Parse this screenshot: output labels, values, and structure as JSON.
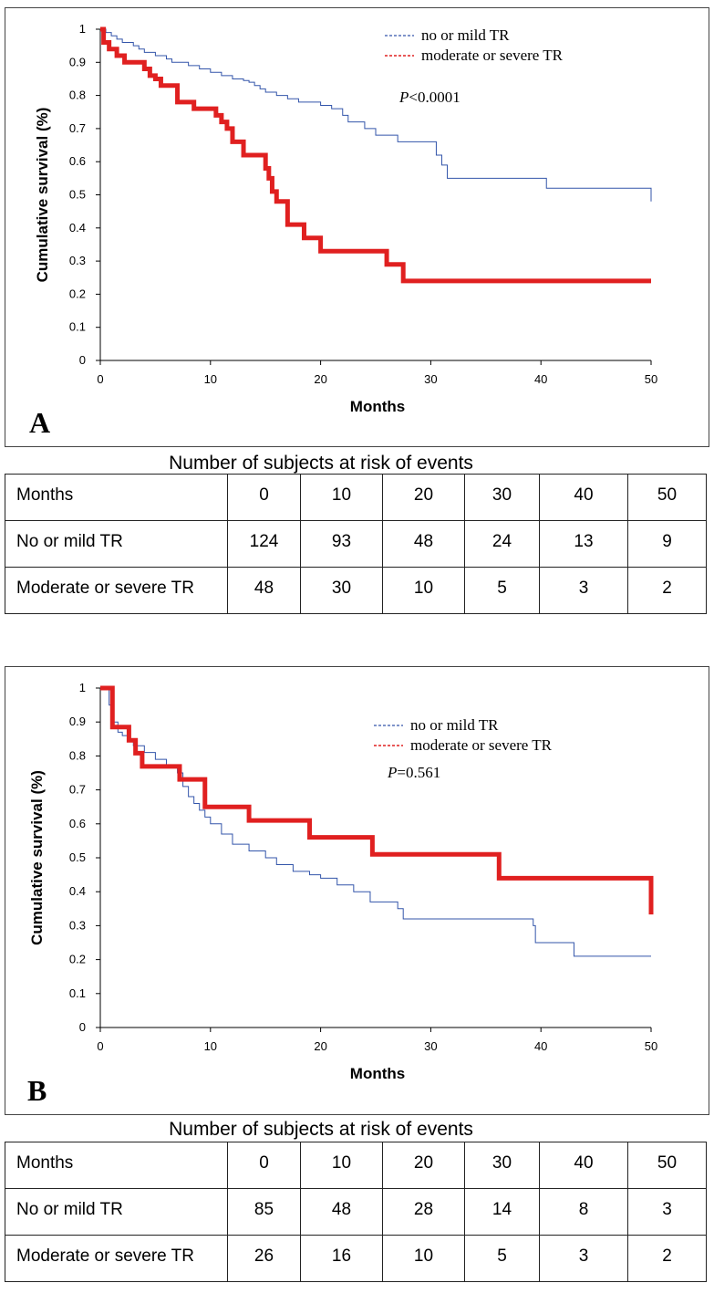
{
  "chart_data": [
    {
      "type": "line",
      "panel_label": "A",
      "xlabel": "Months",
      "ylabel": "Cumulative survival (%)",
      "xlim": [
        0,
        50
      ],
      "ylim": [
        0,
        1
      ],
      "xticks": [
        "0",
        "10",
        "20",
        "30",
        "40",
        "50"
      ],
      "yticks": [
        "0",
        "0.1",
        "0.2",
        "0.3",
        "0.4",
        "0.5",
        "0.6",
        "0.7",
        "0.8",
        "0.9",
        "1"
      ],
      "step": true,
      "legend_position": "top-right",
      "pvalue_label": "P",
      "pvalue_text": "<0.0001",
      "series": [
        {
          "name": "no or mild TR",
          "color": "#3355aa",
          "thick": false,
          "x": [
            0,
            0.5,
            1,
            1.5,
            2,
            3,
            3.5,
            4,
            5,
            6,
            6.5,
            7,
            8,
            9,
            10,
            11,
            12,
            13,
            13.5,
            14,
            14.5,
            15,
            16,
            17,
            18,
            19,
            20,
            21,
            22,
            22.5,
            24,
            25,
            27,
            30.5,
            31,
            31.5,
            40.5,
            50
          ],
          "y": [
            1.0,
            0.99,
            0.98,
            0.97,
            0.96,
            0.95,
            0.94,
            0.93,
            0.92,
            0.91,
            0.9,
            0.9,
            0.89,
            0.88,
            0.87,
            0.86,
            0.85,
            0.845,
            0.84,
            0.83,
            0.82,
            0.81,
            0.8,
            0.79,
            0.78,
            0.78,
            0.77,
            0.76,
            0.74,
            0.72,
            0.7,
            0.68,
            0.66,
            0.62,
            0.59,
            0.55,
            0.52,
            0.48
          ]
        },
        {
          "name": "moderate or severe TR",
          "color": "#e02020",
          "thick": true,
          "x": [
            0,
            0.3,
            0.8,
            1.5,
            2.2,
            4,
            4.5,
            5,
            5.5,
            7,
            8.5,
            10.5,
            11,
            11.5,
            12,
            13,
            15,
            15.3,
            15.6,
            16,
            17,
            18.5,
            20,
            26,
            27.5,
            50
          ],
          "y": [
            1.0,
            0.96,
            0.94,
            0.92,
            0.9,
            0.88,
            0.86,
            0.85,
            0.83,
            0.78,
            0.76,
            0.74,
            0.72,
            0.7,
            0.66,
            0.62,
            0.58,
            0.55,
            0.51,
            0.48,
            0.41,
            0.37,
            0.33,
            0.29,
            0.24,
            0.24
          ]
        }
      ]
    },
    {
      "type": "line",
      "panel_label": "B",
      "xlabel": "Months",
      "ylabel": "Cumulative survival (%)",
      "xlim": [
        0,
        50
      ],
      "ylim": [
        0,
        1
      ],
      "xticks": [
        "0",
        "10",
        "20",
        "30",
        "40",
        "50"
      ],
      "yticks": [
        "0",
        "0.1",
        "0.2",
        "0.3",
        "0.4",
        "0.5",
        "0.6",
        "0.7",
        "0.8",
        "0.9",
        "1"
      ],
      "step": true,
      "legend_position": "top-right",
      "pvalue_label": "P",
      "pvalue_text": "=0.561",
      "series": [
        {
          "name": "no or mild TR",
          "color": "#3355aa",
          "thick": false,
          "x": [
            0,
            0.8,
            1.2,
            1.6,
            2,
            2.5,
            3,
            4,
            5,
            6,
            7,
            7.5,
            8,
            8.5,
            9,
            9.5,
            10,
            11,
            12,
            13.5,
            15,
            16,
            17.5,
            19,
            20,
            21.5,
            23,
            24.5,
            27,
            27.5,
            39.3,
            39.5,
            43,
            50
          ],
          "y": [
            1.0,
            0.95,
            0.9,
            0.87,
            0.86,
            0.85,
            0.83,
            0.81,
            0.79,
            0.77,
            0.75,
            0.71,
            0.68,
            0.66,
            0.64,
            0.62,
            0.6,
            0.57,
            0.54,
            0.52,
            0.5,
            0.48,
            0.46,
            0.45,
            0.44,
            0.42,
            0.4,
            0.37,
            0.35,
            0.32,
            0.3,
            0.25,
            0.21,
            0.21
          ]
        },
        {
          "name": "moderate or severe TR",
          "color": "#e02020",
          "thick": true,
          "x": [
            0,
            1.1,
            2.6,
            3.2,
            3.8,
            7.2,
            9.5,
            13.5,
            19,
            24.7,
            36.2,
            50
          ],
          "y": [
            1.0,
            0.885,
            0.846,
            0.808,
            0.769,
            0.731,
            0.65,
            0.61,
            0.56,
            0.51,
            0.44,
            0.333
          ]
        }
      ]
    }
  ],
  "risk_tables": [
    {
      "caption": "Number of subjects at risk of events",
      "header": [
        "Months",
        "0",
        "10",
        "20",
        "30",
        "40",
        "50"
      ],
      "rows": [
        [
          "No or mild TR",
          "124",
          "93",
          "48",
          "24",
          "13",
          "9"
        ],
        [
          "Moderate or severe TR",
          "48",
          "30",
          "10",
          "5",
          "3",
          "2"
        ]
      ]
    },
    {
      "caption": "Number of subjects at risk of events",
      "header": [
        "Months",
        "0",
        "10",
        "20",
        "30",
        "40",
        "50"
      ],
      "rows": [
        [
          "No or mild TR",
          "85",
          "48",
          "28",
          "14",
          "8",
          "3"
        ],
        [
          "Moderate or severe TR",
          "26",
          "16",
          "10",
          "5",
          "3",
          "2"
        ]
      ]
    }
  ]
}
